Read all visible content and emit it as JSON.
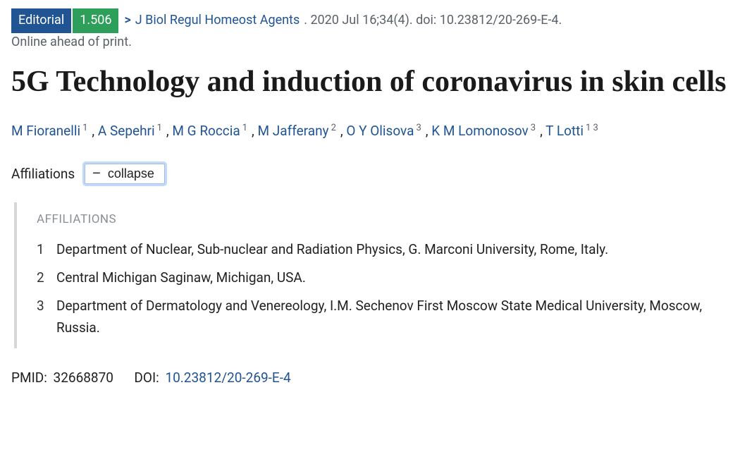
{
  "badges": {
    "type": "Editorial",
    "impact_factor": "1.506"
  },
  "chevron": ">",
  "journal": "J Biol Regul Homeost Agents",
  "citation_tail": ". 2020 Jul 16;34(4). doi: 10.23812/20-269-E-4.",
  "online_ahead": "Online ahead of print.",
  "title": "5G Technology and induction of coronavirus in skin cells",
  "authors": [
    {
      "name": "M Fioranelli",
      "affs": "1"
    },
    {
      "name": "A Sepehri",
      "affs": "1"
    },
    {
      "name": "M G Roccia",
      "affs": "1"
    },
    {
      "name": "M Jafferany",
      "affs": "2"
    },
    {
      "name": "O Y Olisova",
      "affs": "3"
    },
    {
      "name": "K M Lomonosov",
      "affs": "3"
    },
    {
      "name": "T Lotti",
      "affs": "1 3"
    }
  ],
  "affiliations_label": "Affiliations",
  "collapse_label": "collapse",
  "affil_heading": "AFFILIATIONS",
  "affiliations": [
    {
      "n": "1",
      "text": "Department of Nuclear, Sub-nuclear and Radiation Physics, G. Marconi University, Rome, Italy."
    },
    {
      "n": "2",
      "text": "Central Michigan Saginaw, Michigan, USA."
    },
    {
      "n": "3",
      "text": "Department of Dermatology and Venereology, I.M. Sechenov First Moscow State Medical University, Moscow, Russia."
    }
  ],
  "pmid_label": "PMID:",
  "pmid": "32668870",
  "doi_label": "DOI:",
  "doi": "10.23812/20-269-E-4",
  "colors": {
    "editorial_bg": "#205493",
    "if_bg": "#2e9e5b",
    "link": "#205493",
    "muted": "#5b616b",
    "border_left": "#d6d7d9"
  }
}
